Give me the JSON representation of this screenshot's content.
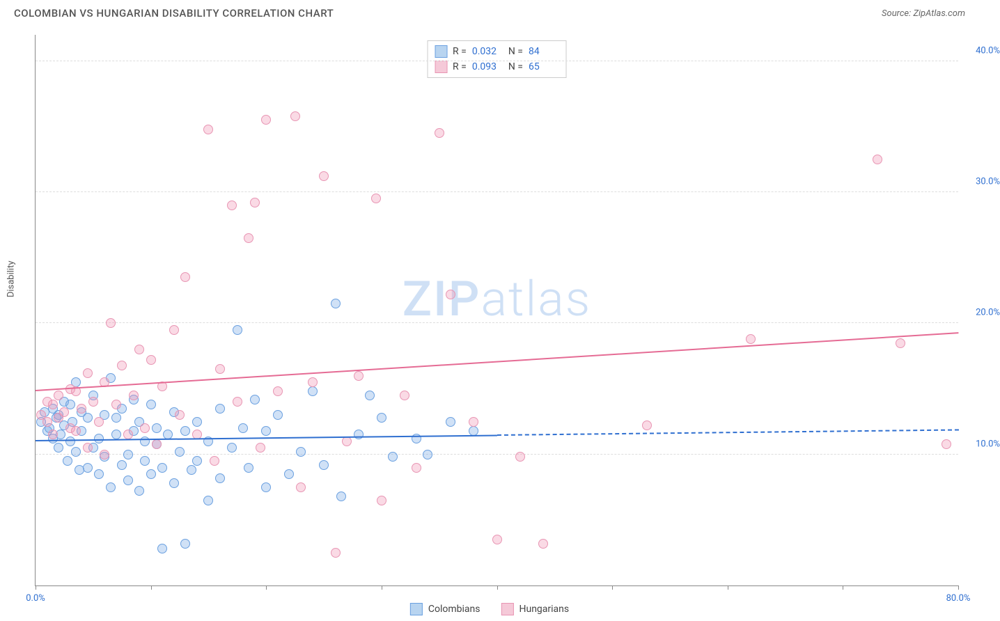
{
  "header": {
    "title": "COLOMBIAN VS HUNGARIAN DISABILITY CORRELATION CHART",
    "source_prefix": "Source: ",
    "source_name": "ZipAtlas.com"
  },
  "chart": {
    "type": "scatter",
    "y_axis_label": "Disability",
    "xlim": [
      0,
      80
    ],
    "ylim": [
      0,
      42
    ],
    "x_ticks": [
      0,
      10,
      20,
      30,
      40,
      50,
      60,
      70,
      80
    ],
    "x_tick_labels": {
      "0": "0.0%",
      "80": "80.0%"
    },
    "y_ticks": [
      10,
      20,
      30,
      40
    ],
    "y_tick_labels": {
      "10": "10.0%",
      "20": "20.0%",
      "30": "30.0%",
      "40": "40.0%"
    },
    "grid_color": "#dddddd",
    "axis_color": "#888888",
    "background_color": "#ffffff",
    "label_color_x": "#2f6fd0",
    "label_color_y": "#2f6fd0",
    "marker_radius": 7,
    "marker_border_width": 1.5,
    "watermark": {
      "text_bold": "ZIP",
      "text_light": "atlas",
      "color": "#cfe0f5"
    },
    "series": [
      {
        "name": "Colombians",
        "fill_color": "rgba(120,170,230,0.35)",
        "border_color": "#6aa0e0",
        "swatch_fill": "#b8d4f0",
        "swatch_border": "#6aa0e0",
        "stats": {
          "R": "0.032",
          "N": "84"
        },
        "trend": {
          "x1": 0,
          "y1": 11.0,
          "x2": 40,
          "y2": 11.4,
          "color": "#2f6fd0",
          "dash_to_x": 80,
          "dash_to_y": 11.8
        },
        "points": [
          [
            0.5,
            12.5
          ],
          [
            0.8,
            13.2
          ],
          [
            1.0,
            11.8
          ],
          [
            1.2,
            12.0
          ],
          [
            1.5,
            13.5
          ],
          [
            1.5,
            11.2
          ],
          [
            1.8,
            12.8
          ],
          [
            2.0,
            10.5
          ],
          [
            2.0,
            13.0
          ],
          [
            2.2,
            11.5
          ],
          [
            2.5,
            14.0
          ],
          [
            2.5,
            12.2
          ],
          [
            2.8,
            9.5
          ],
          [
            3.0,
            13.8
          ],
          [
            3.0,
            11.0
          ],
          [
            3.2,
            12.5
          ],
          [
            3.5,
            15.5
          ],
          [
            3.5,
            10.2
          ],
          [
            3.8,
            8.8
          ],
          [
            4.0,
            11.8
          ],
          [
            4.0,
            13.2
          ],
          [
            4.5,
            9.0
          ],
          [
            4.5,
            12.8
          ],
          [
            5.0,
            10.5
          ],
          [
            5.0,
            14.5
          ],
          [
            5.5,
            8.5
          ],
          [
            5.5,
            11.2
          ],
          [
            6.0,
            13.0
          ],
          [
            6.0,
            9.8
          ],
          [
            6.5,
            15.8
          ],
          [
            6.5,
            7.5
          ],
          [
            7.0,
            11.5
          ],
          [
            7.0,
            12.8
          ],
          [
            7.5,
            9.2
          ],
          [
            7.5,
            13.5
          ],
          [
            8.0,
            10.0
          ],
          [
            8.0,
            8.0
          ],
          [
            8.5,
            11.8
          ],
          [
            8.5,
            14.2
          ],
          [
            9.0,
            7.2
          ],
          [
            9.0,
            12.5
          ],
          [
            9.5,
            9.5
          ],
          [
            9.5,
            11.0
          ],
          [
            10.0,
            13.8
          ],
          [
            10.0,
            8.5
          ],
          [
            10.5,
            10.8
          ],
          [
            10.5,
            12.0
          ],
          [
            11.0,
            2.8
          ],
          [
            11.0,
            9.0
          ],
          [
            11.5,
            11.5
          ],
          [
            12.0,
            7.8
          ],
          [
            12.0,
            13.2
          ],
          [
            12.5,
            10.2
          ],
          [
            13.0,
            3.2
          ],
          [
            13.0,
            11.8
          ],
          [
            13.5,
            8.8
          ],
          [
            14.0,
            12.5
          ],
          [
            14.0,
            9.5
          ],
          [
            15.0,
            6.5
          ],
          [
            15.0,
            11.0
          ],
          [
            16.0,
            13.5
          ],
          [
            16.0,
            8.2
          ],
          [
            17.0,
            10.5
          ],
          [
            17.5,
            19.5
          ],
          [
            18.0,
            12.0
          ],
          [
            18.5,
            9.0
          ],
          [
            19.0,
            14.2
          ],
          [
            20.0,
            7.5
          ],
          [
            20.0,
            11.8
          ],
          [
            21.0,
            13.0
          ],
          [
            22.0,
            8.5
          ],
          [
            23.0,
            10.2
          ],
          [
            24.0,
            14.8
          ],
          [
            25.0,
            9.2
          ],
          [
            26.0,
            21.5
          ],
          [
            26.5,
            6.8
          ],
          [
            28.0,
            11.5
          ],
          [
            29.0,
            14.5
          ],
          [
            30.0,
            12.8
          ],
          [
            31.0,
            9.8
          ],
          [
            33.0,
            11.2
          ],
          [
            34.0,
            10.0
          ],
          [
            36.0,
            12.5
          ],
          [
            38.0,
            11.8
          ]
        ]
      },
      {
        "name": "Hungarians",
        "fill_color": "rgba(240,150,180,0.35)",
        "border_color": "#e895b3",
        "swatch_fill": "#f5c9d8",
        "swatch_border": "#e895b3",
        "stats": {
          "R": "0.093",
          "N": "65"
        },
        "trend": {
          "x1": 0,
          "y1": 14.8,
          "x2": 80,
          "y2": 19.2,
          "color": "#e56b94"
        },
        "points": [
          [
            0.5,
            13.0
          ],
          [
            1.0,
            14.0
          ],
          [
            1.0,
            12.5
          ],
          [
            1.5,
            13.8
          ],
          [
            1.5,
            11.5
          ],
          [
            2.0,
            12.8
          ],
          [
            2.0,
            14.5
          ],
          [
            2.5,
            13.2
          ],
          [
            3.0,
            15.0
          ],
          [
            3.0,
            12.0
          ],
          [
            3.5,
            14.8
          ],
          [
            3.5,
            11.8
          ],
          [
            4.0,
            13.5
          ],
          [
            4.5,
            16.2
          ],
          [
            4.5,
            10.5
          ],
          [
            5.0,
            14.0
          ],
          [
            5.5,
            12.5
          ],
          [
            6.0,
            15.5
          ],
          [
            6.0,
            10.0
          ],
          [
            6.5,
            20.0
          ],
          [
            7.0,
            13.8
          ],
          [
            7.5,
            16.8
          ],
          [
            8.0,
            11.5
          ],
          [
            8.5,
            14.5
          ],
          [
            9.0,
            18.0
          ],
          [
            9.5,
            12.0
          ],
          [
            10.0,
            17.2
          ],
          [
            10.5,
            10.8
          ],
          [
            11.0,
            15.2
          ],
          [
            12.0,
            19.5
          ],
          [
            12.5,
            13.0
          ],
          [
            13.0,
            23.5
          ],
          [
            14.0,
            11.5
          ],
          [
            15.0,
            34.8
          ],
          [
            15.5,
            9.5
          ],
          [
            16.0,
            16.5
          ],
          [
            17.0,
            29.0
          ],
          [
            17.5,
            14.0
          ],
          [
            18.5,
            26.5
          ],
          [
            19.0,
            29.2
          ],
          [
            19.5,
            10.5
          ],
          [
            20.0,
            35.5
          ],
          [
            21.0,
            14.8
          ],
          [
            22.5,
            35.8
          ],
          [
            23.0,
            7.5
          ],
          [
            24.0,
            15.5
          ],
          [
            25.0,
            31.2
          ],
          [
            26.0,
            2.5
          ],
          [
            27.0,
            11.0
          ],
          [
            28.0,
            16.0
          ],
          [
            29.5,
            29.5
          ],
          [
            30.0,
            6.5
          ],
          [
            32.0,
            14.5
          ],
          [
            33.0,
            9.0
          ],
          [
            35.0,
            34.5
          ],
          [
            36.0,
            22.2
          ],
          [
            38.0,
            12.5
          ],
          [
            40.0,
            3.5
          ],
          [
            42.0,
            9.8
          ],
          [
            44.0,
            3.2
          ],
          [
            53.0,
            12.2
          ],
          [
            62.0,
            18.8
          ],
          [
            73.0,
            32.5
          ],
          [
            75.0,
            18.5
          ],
          [
            79.0,
            10.8
          ]
        ]
      }
    ]
  },
  "stats_box": {
    "r_label": "R =",
    "n_label": "N =",
    "value_color": "#2f6fd0",
    "label_color": "#444444"
  },
  "legend": {
    "items": [
      {
        "label": "Colombians",
        "series_idx": 0
      },
      {
        "label": "Hungarians",
        "series_idx": 1
      }
    ]
  }
}
